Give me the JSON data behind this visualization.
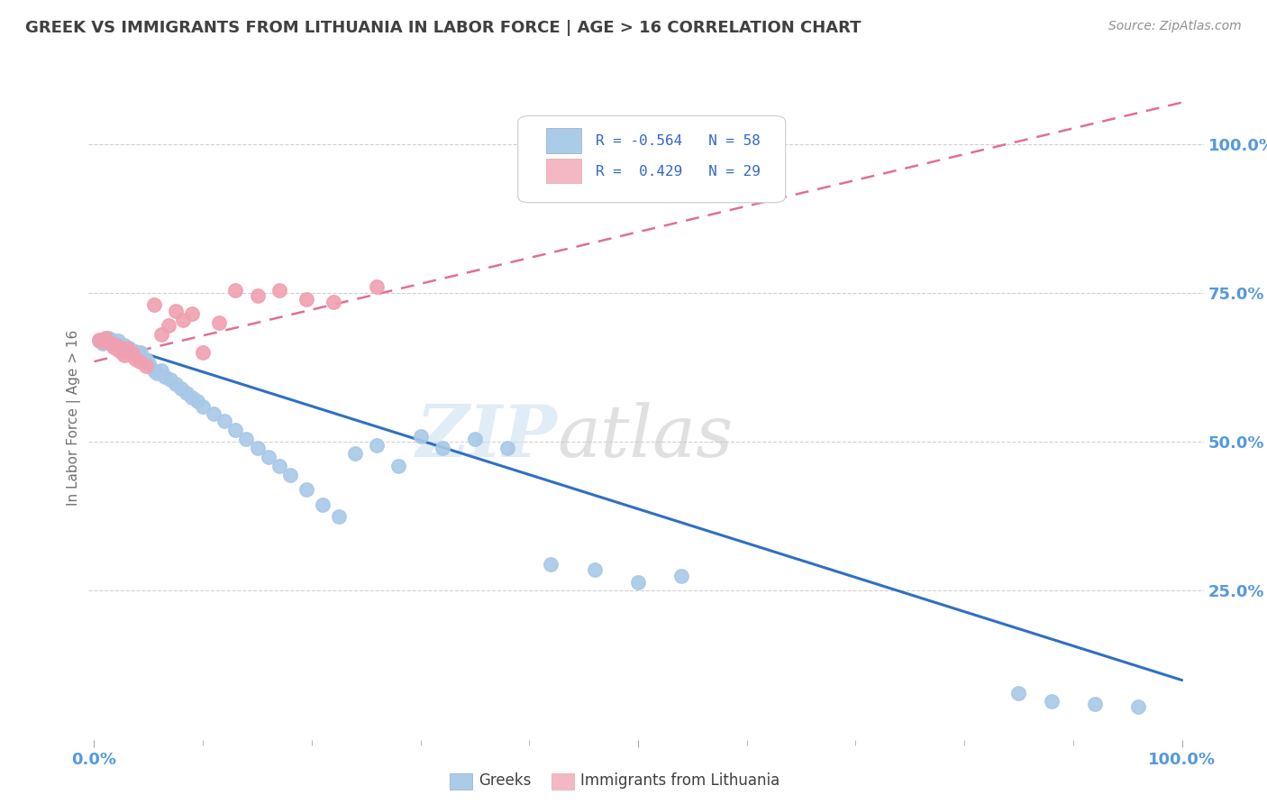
{
  "title": "GREEK VS IMMIGRANTS FROM LITHUANIA IN LABOR FORCE | AGE > 16 CORRELATION CHART",
  "source": "Source: ZipAtlas.com",
  "ylabel": "In Labor Force | Age > 16",
  "scatter_color_blue": "#a8c8e8",
  "scatter_color_pink": "#f0a0b0",
  "line_color_blue": "#3070c0",
  "line_color_pink": "#e07090",
  "watermark_zip": "ZIP",
  "watermark_atlas": "atlas",
  "background_color": "#ffffff",
  "title_color": "#404040",
  "axis_label_color": "#5599dd",
  "blue_line_x": [
    0.0,
    1.0
  ],
  "blue_line_y": [
    0.675,
    0.1
  ],
  "pink_line_x": [
    0.0,
    1.0
  ],
  "pink_line_y": [
    0.635,
    1.07
  ],
  "blue_x": [
    0.005,
    0.008,
    0.01,
    0.012,
    0.013,
    0.015,
    0.016,
    0.018,
    0.02,
    0.022,
    0.025,
    0.028,
    0.03,
    0.032,
    0.035,
    0.038,
    0.04,
    0.043,
    0.045,
    0.048,
    0.05,
    0.055,
    0.058,
    0.062,
    0.065,
    0.07,
    0.075,
    0.08,
    0.085,
    0.09,
    0.095,
    0.1,
    0.11,
    0.12,
    0.13,
    0.14,
    0.15,
    0.16,
    0.17,
    0.18,
    0.195,
    0.21,
    0.225,
    0.24,
    0.26,
    0.28,
    0.3,
    0.32,
    0.35,
    0.38,
    0.42,
    0.46,
    0.5,
    0.54,
    0.85,
    0.88,
    0.92,
    0.96
  ],
  "blue_y": [
    0.67,
    0.665,
    0.672,
    0.668,
    0.674,
    0.669,
    0.671,
    0.667,
    0.665,
    0.67,
    0.66,
    0.663,
    0.655,
    0.658,
    0.648,
    0.652,
    0.645,
    0.65,
    0.64,
    0.638,
    0.632,
    0.62,
    0.615,
    0.62,
    0.61,
    0.605,
    0.598,
    0.59,
    0.582,
    0.575,
    0.568,
    0.56,
    0.548,
    0.535,
    0.52,
    0.505,
    0.49,
    0.475,
    0.46,
    0.445,
    0.42,
    0.395,
    0.375,
    0.48,
    0.495,
    0.46,
    0.51,
    0.49,
    0.505,
    0.49,
    0.295,
    0.285,
    0.265,
    0.275,
    0.078,
    0.065,
    0.06,
    0.055
  ],
  "pink_x": [
    0.005,
    0.008,
    0.01,
    0.012,
    0.015,
    0.018,
    0.02,
    0.022,
    0.025,
    0.028,
    0.03,
    0.035,
    0.038,
    0.042,
    0.048,
    0.055,
    0.062,
    0.068,
    0.075,
    0.082,
    0.09,
    0.1,
    0.115,
    0.13,
    0.15,
    0.17,
    0.195,
    0.22,
    0.26
  ],
  "pink_y": [
    0.672,
    0.668,
    0.674,
    0.67,
    0.665,
    0.66,
    0.662,
    0.655,
    0.65,
    0.645,
    0.658,
    0.648,
    0.64,
    0.635,
    0.628,
    0.73,
    0.68,
    0.695,
    0.72,
    0.705,
    0.715,
    0.65,
    0.7,
    0.755,
    0.745,
    0.755,
    0.74,
    0.735,
    0.76
  ],
  "ylim_min": 0.0,
  "ylim_max": 1.08,
  "xlim_min": -0.005,
  "xlim_max": 1.02
}
